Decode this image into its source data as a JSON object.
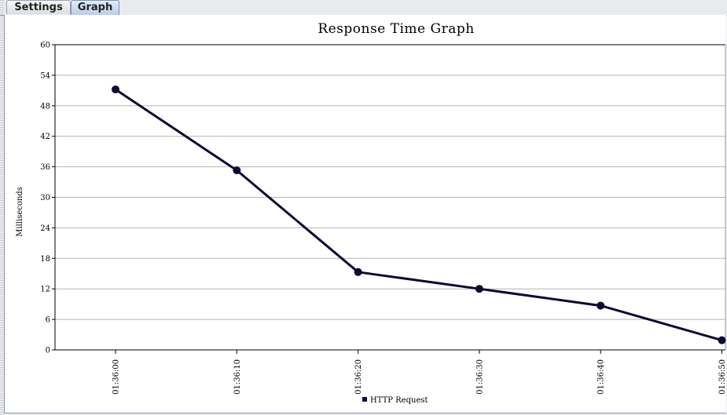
{
  "tabs": [
    {
      "label": "Settings",
      "selected": false
    },
    {
      "label": "Graph",
      "selected": true
    }
  ],
  "chart_data": {
    "type": "line",
    "title": "Response Time Graph",
    "ylabel": "Milliseconds",
    "xlabel": "",
    "ylim": [
      0,
      60
    ],
    "yticks": [
      0,
      6,
      12,
      18,
      24,
      30,
      36,
      42,
      48,
      54,
      60
    ],
    "categories": [
      "01:36:00",
      "01:36:10",
      "01:36:20",
      "01:36:30",
      "01:36:40",
      "01:36:50"
    ],
    "series": [
      {
        "name": "HTTP Request",
        "values": [
          51.2,
          35.3,
          15.3,
          12.0,
          8.7,
          1.9
        ],
        "color": "#0c0a33"
      }
    ],
    "grid": true,
    "legend": "bottom-center"
  }
}
